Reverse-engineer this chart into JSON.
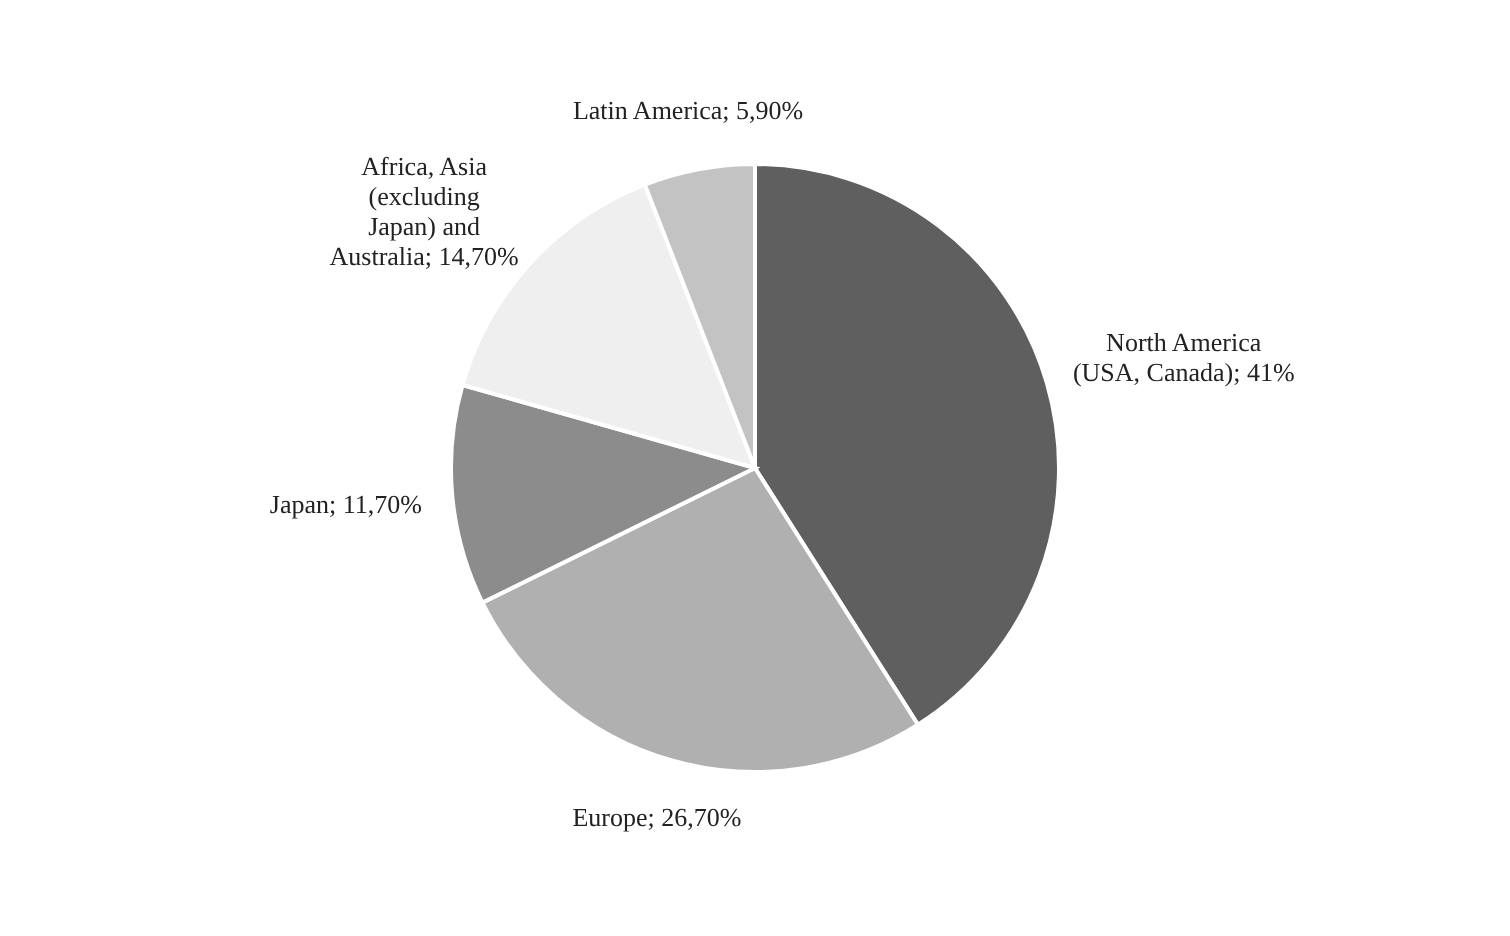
{
  "chart_data": {
    "type": "pie",
    "categories": [
      "North America\n(USA, Canada)",
      "Europe",
      "Japan",
      "Africa, Asia\n(excluding\nJapan) and\nAustralia",
      "Latin America"
    ],
    "values": [
      41,
      26.7,
      11.7,
      14.7,
      5.9
    ],
    "value_labels": [
      "41%",
      "26,70%",
      "11,70%",
      "14,70%",
      "5,90%"
    ],
    "colors": [
      "#5f5f5f",
      "#b0b0b0",
      "#8c8c8c",
      "#efefef",
      "#c3c3c3"
    ],
    "legend": false
  }
}
